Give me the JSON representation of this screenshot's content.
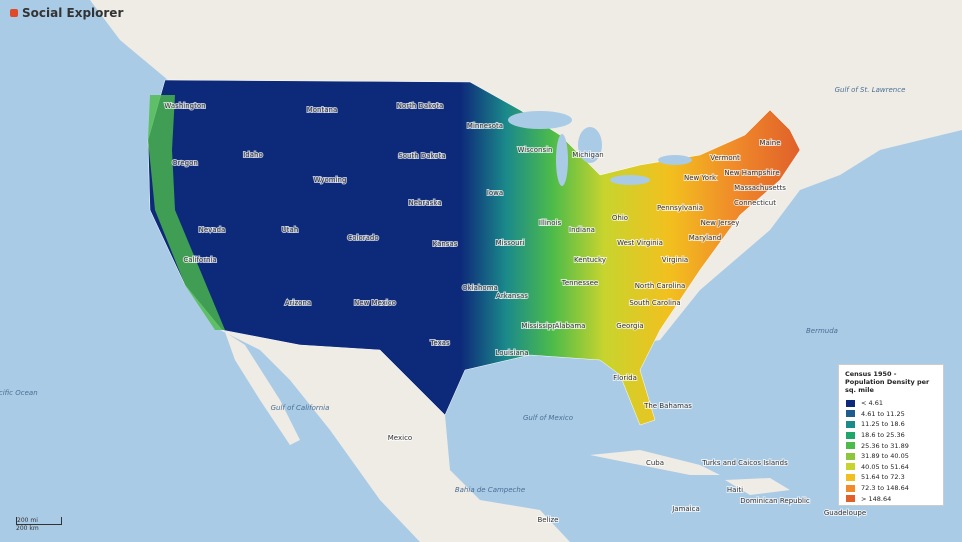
{
  "header": {
    "logo": "Social Explorer"
  },
  "legend": {
    "title": "Census 1950 - Population Density per sq. mile",
    "items": [
      {
        "label": "< 4.61",
        "color": "#0d2a7a"
      },
      {
        "label": "4.61 to 11.25",
        "color": "#1d5c8c"
      },
      {
        "label": "11.25 to 18.6",
        "color": "#1b8a8a"
      },
      {
        "label": "18.6 to 25.36",
        "color": "#20a66a"
      },
      {
        "label": "25.36 to 31.89",
        "color": "#4cbb4a"
      },
      {
        "label": "31.89 to 40.05",
        "color": "#8cc63c"
      },
      {
        "label": "40.05 to 51.64",
        "color": "#c8d42e"
      },
      {
        "label": "51.64 to 72.3",
        "color": "#f2c01e"
      },
      {
        "label": "72.3 to 148.64",
        "color": "#f08a2a"
      },
      {
        "label": "> 148.64",
        "color": "#e0602a"
      }
    ]
  },
  "scale": [
    "200 mi",
    "200 km"
  ],
  "map_labels": [
    "Washington",
    "Oregon",
    "California",
    "Nevada",
    "Idaho",
    "Montana",
    "Wyoming",
    "Utah",
    "Arizona",
    "Colorado",
    "New Mexico",
    "North Dakota",
    "South Dakota",
    "Nebraska",
    "Kansas",
    "Oklahoma",
    "Texas",
    "Minnesota",
    "Iowa",
    "Missouri",
    "Arkansas",
    "Louisiana",
    "Wisconsin",
    "Illinois",
    "Michigan",
    "Indiana",
    "Ohio",
    "Kentucky",
    "Tennessee",
    "Mississippi",
    "Alabama",
    "Georgia",
    "Florida",
    "South Carolina",
    "North Carolina",
    "Virginia",
    "West Virginia",
    "Pennsylvania",
    "New York",
    "Maryland",
    "New Jersey",
    "Connecticut",
    "Massachusetts",
    "Vermont",
    "New Hampshire",
    "Maine",
    "Mexico",
    "Cuba",
    "The Bahamas",
    "Haiti",
    "Dominican Republic",
    "Jamaica",
    "Belize",
    "Guadeloupe",
    "Turks and Caicos Islands"
  ],
  "water_labels": [
    "Pacific Ocean",
    "Gulf of Mexico",
    "Gulf of California",
    "Bermuda",
    "Gulf of St. Lawrence",
    "Bahia de Campeche"
  ]
}
